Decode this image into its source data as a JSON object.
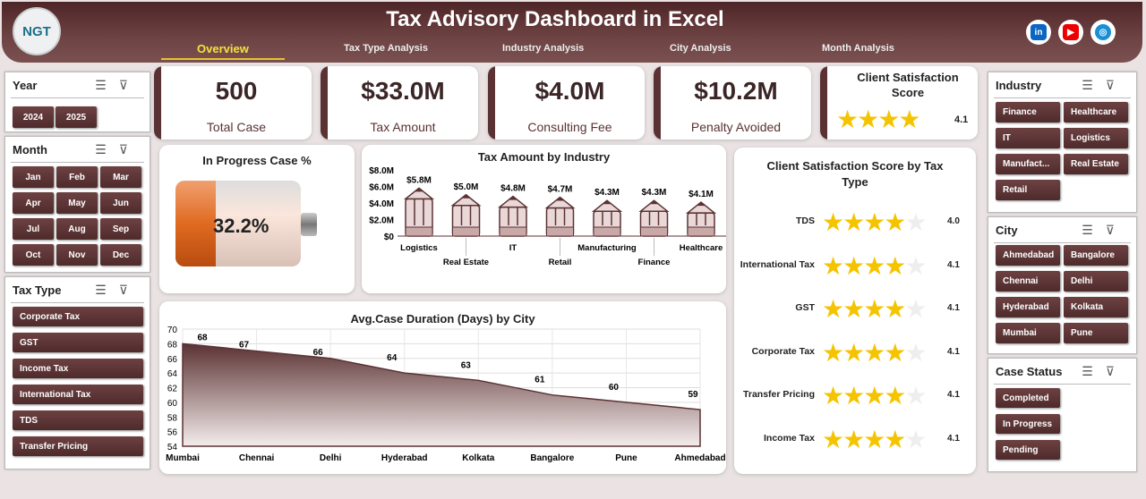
{
  "header": {
    "title": "Tax Advisory Dashboard in Excel",
    "logo_text": "NGT",
    "tabs": [
      "Overview",
      "Tax Type Analysis",
      "Industry Analysis",
      "City Analysis",
      "Month Analysis"
    ],
    "active_tab": "Overview",
    "social": [
      "linkedin-icon",
      "youtube-icon",
      "globe-icon"
    ]
  },
  "filters": {
    "year": {
      "title": "Year",
      "items": [
        "2024",
        "2025"
      ]
    },
    "month": {
      "title": "Month",
      "items": [
        "Jan",
        "Feb",
        "Mar",
        "Apr",
        "May",
        "Jun",
        "Jul",
        "Aug",
        "Sep",
        "Oct",
        "Nov",
        "Dec"
      ]
    },
    "tax_type": {
      "title": "Tax Type",
      "items": [
        "Corporate Tax",
        "GST",
        "Income Tax",
        "International Tax",
        "TDS",
        "Transfer Pricing"
      ]
    },
    "industry": {
      "title": "Industry",
      "items": [
        "Finance",
        "Healthcare",
        "IT",
        "Logistics",
        "Manufact...",
        "Real Estate",
        "Retail"
      ]
    },
    "city": {
      "title": "City",
      "items": [
        "Ahmedabad",
        "Bangalore",
        "Chennai",
        "Delhi",
        "Hyderabad",
        "Kolkata",
        "Mumbai",
        "Pune"
      ]
    },
    "case_status": {
      "title": "Case Status",
      "items": [
        "Completed",
        "In Progress",
        "Pending"
      ]
    }
  },
  "kpis": [
    {
      "value": "500",
      "label": "Total Case"
    },
    {
      "value": "$33.0M",
      "label": "Tax Amount"
    },
    {
      "value": "$4.0M",
      "label": "Consulting Fee"
    },
    {
      "value": "$10.2M",
      "label": "Penalty Avoided"
    }
  ],
  "satisfaction": {
    "title": "Client Satisfaction Score",
    "value": "4.1",
    "stars": 4.1
  },
  "in_progress": {
    "title": "In Progress Case %",
    "value": "32.2%",
    "fraction": 0.322
  },
  "colors": {
    "primary": "#5b3233",
    "accent": "#f5c400",
    "battery": "#e8742a"
  },
  "chart_data": [
    {
      "type": "bar",
      "title": "Tax Amount by Industry",
      "categories": [
        "Logistics",
        "Real Estate",
        "IT",
        "Retail",
        "Manufacturing",
        "Finance",
        "Healthcare"
      ],
      "values": [
        5.8,
        5.0,
        4.8,
        4.7,
        4.3,
        4.3,
        4.1
      ],
      "labels": [
        "$5.8M",
        "$5.0M",
        "$4.8M",
        "$4.7M",
        "$4.3M",
        "$4.3M",
        "$4.1M"
      ],
      "yticks": [
        "$0",
        "$2.0M",
        "$4.0M",
        "$6.0M",
        "$8.0M"
      ],
      "ylim": [
        0,
        8
      ]
    },
    {
      "type": "area",
      "title": "Avg.Case Duration (Days) by City",
      "categories": [
        "Mumbai",
        "Chennai",
        "Delhi",
        "Hyderabad",
        "Kolkata",
        "Bangalore",
        "Pune",
        "Ahmedabad"
      ],
      "values": [
        68,
        67,
        66,
        64,
        63,
        61,
        60,
        59
      ],
      "ylim": [
        54,
        70
      ],
      "yticks": [
        "54",
        "56",
        "58",
        "60",
        "62",
        "64",
        "66",
        "68",
        "70"
      ],
      "grid": true
    },
    {
      "type": "bar",
      "title": "Client Satisfaction Score by Tax Type",
      "categories": [
        "TDS",
        "International Tax",
        "GST",
        "Corporate Tax",
        "Transfer Pricing",
        "Income Tax"
      ],
      "values": [
        4.0,
        4.1,
        4.1,
        4.1,
        4.1,
        4.1
      ],
      "labels": [
        "4.0",
        "4.1",
        "4.1",
        "4.1",
        "4.1",
        "4.1"
      ],
      "xlim": [
        0,
        5
      ]
    }
  ]
}
